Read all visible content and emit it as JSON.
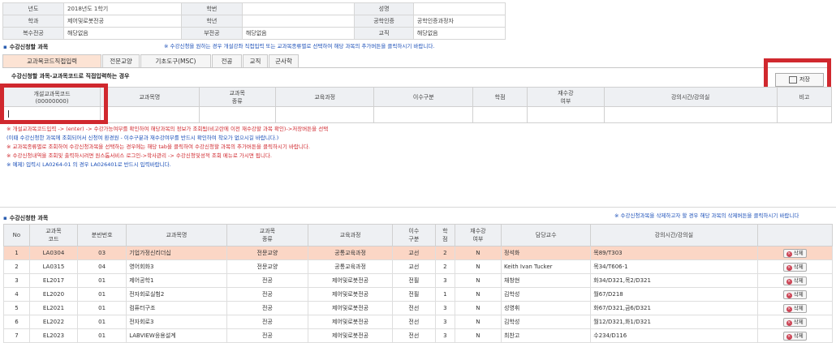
{
  "info": {
    "rows": [
      [
        {
          "l": "년도"
        },
        {
          "v": "2018년도 1학기"
        },
        {
          "l": "학번"
        },
        {
          "v": ""
        },
        {
          "l": "성명"
        },
        {
          "v": ""
        }
      ],
      [
        {
          "l": "학과"
        },
        {
          "v": "제어및로봇전공"
        },
        {
          "l": "학년"
        },
        {
          "v": ""
        },
        {
          "l": "공학인증"
        },
        {
          "v": "공학인증과정자"
        }
      ],
      [
        {
          "l": "복수전공"
        },
        {
          "v": "해당없음"
        },
        {
          "l": "부전공"
        },
        {
          "v": "해당없음"
        },
        {
          "l": "교직"
        },
        {
          "v": "해당없음"
        }
      ]
    ]
  },
  "section1": {
    "title": "수강신청할 과목",
    "note": "※ 수강신청을 원하는 경우 개설강좌 직접입력 또는 교과목종류별로 선택하여 해당 과목의 추가버튼을 클릭하시기 바랍니다."
  },
  "tabs": [
    "교과목코드직접입력",
    "전문교양",
    "기초도구(MSC)",
    "전공",
    "교직",
    "군사학"
  ],
  "subtitle": "수강신청할 과목-교과목코드로 직접입력하는 경우",
  "save_label": "저장",
  "input_grid": {
    "headers": [
      "개설교과목코드\n(00000000)",
      "교과목명",
      "교과목\n종류",
      "교육과정",
      "이수구분",
      "학점",
      "재수강\n여부",
      "강의시간/강의실",
      "비고"
    ]
  },
  "messages": [
    {
      "cls": "red",
      "text": "※ 개설교과목코드입력 -> (enter) -> 수강가능여부를 확인하여 해당과목의 정보가 조회됨(비고란에 이전 재수강할 과목 확인)->저장버튼을 선택"
    },
    {
      "cls": "blue",
      "text": "   (이때 수강신청한 과목에 조회되어서 신청여 환경원 - 이수구분과 재수강여부를 반드시 확인하여 착오가 없으시길 바랍니다.)"
    },
    {
      "cls": "red",
      "text": "※ 교과목종류별로 조회하여 수강신청과목을 선택하는 경우에는 해당 tab을 클릭하여 수강신청할 과목의 추가버튼을 클릭하시기 바랍니다."
    },
    {
      "cls": "red",
      "text": "※ 수강신청내역을 조회및 출력하시려면 원스톱서비스 로그인->학사관리 -> 수강신청및성적 조회 메뉴로 가시면 됩니다."
    },
    {
      "cls": "blue",
      "text": "※ 예제) 입력시 LA0264-01 의 경우 LA026401로 반드시 입력바랍니다."
    }
  ],
  "section2": {
    "title": "수강신청한 과목",
    "note": "※ 수강신청과목을 삭제하고자 할 경우 해당 과목의 삭제버튼을 클릭하시기 바랍니다"
  },
  "enrolled": {
    "headers": [
      "No",
      "교과목\n코드",
      "분반번호",
      "교과목명",
      "교과목\n종류",
      "교육과정",
      "이수\n구분",
      "학\n점",
      "재수강\n여부",
      "담당교수",
      "강의시간/강의실",
      ""
    ],
    "delete_label": "삭제",
    "rows": [
      [
        "1",
        "LA0304",
        "03",
        "기업가정신리더십",
        "전문교양",
        "공통교육과정",
        "교선",
        "2",
        "N",
        "정석화",
        "목89/T303"
      ],
      [
        "2",
        "LA0315",
        "04",
        "영어회화3",
        "전문교양",
        "공통교육과정",
        "교선",
        "2",
        "N",
        "Keith Ivan Tucker",
        "목34/T606-1"
      ],
      [
        "3",
        "EL2017",
        "01",
        "제어공학1",
        "전공",
        "제어및로봇전공",
        "전필",
        "3",
        "N",
        "채창현",
        "화34/D321,목2/D321"
      ],
      [
        "4",
        "EL2020",
        "01",
        "전자회로실험2",
        "전공",
        "제어및로봇전공",
        "전필",
        "1",
        "N",
        "김학성",
        "월67/D218"
      ],
      [
        "5",
        "EL2021",
        "01",
        "컴퓨터구조",
        "전공",
        "제어및로봇전공",
        "전선",
        "3",
        "N",
        "성영휘",
        "화67/D321,금6/D321"
      ],
      [
        "6",
        "EL2022",
        "01",
        "전자회로3",
        "전공",
        "제어및로봇전공",
        "전선",
        "3",
        "N",
        "김학성",
        "월12/D321,화1/D321"
      ],
      [
        "7",
        "EL2023",
        "01",
        "LABVIEW응용설계",
        "전공",
        "제어및로봇전공",
        "전선",
        "3",
        "N",
        "최찬고",
        "수234/D116"
      ]
    ]
  }
}
